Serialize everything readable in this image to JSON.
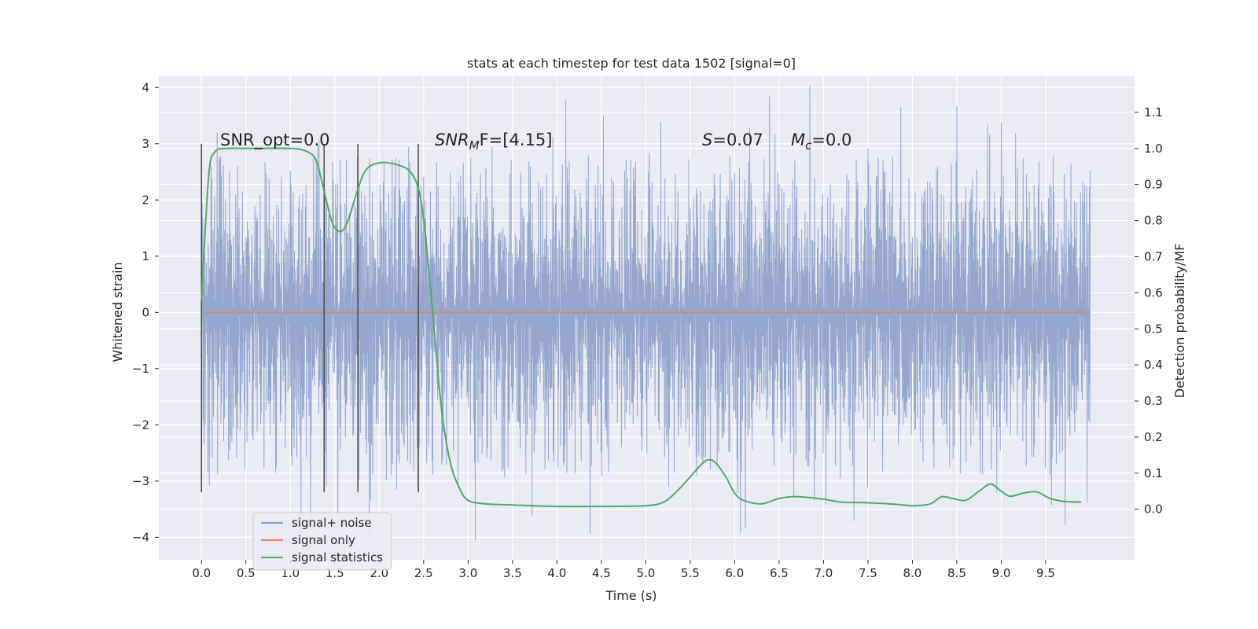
{
  "chart_data": {
    "type": "line",
    "title": "stats at each timestep for test data 1502 [signal=0]",
    "xlabel": "Time (s)",
    "ylabel": "Whitened strain",
    "y2label": "Detection probability/MF",
    "xlim": [
      -0.48,
      10.5
    ],
    "ylim": [
      -4.4,
      4.2
    ],
    "y2lim": [
      -0.14,
      1.2
    ],
    "xticks": [
      0.0,
      0.5,
      1.0,
      1.5,
      2.0,
      2.5,
      3.0,
      3.5,
      4.0,
      4.5,
      5.0,
      5.5,
      6.0,
      6.5,
      7.0,
      7.5,
      8.0,
      8.5,
      9.0,
      9.5
    ],
    "xtick_labels": [
      "0.0",
      "0.5",
      "1.0",
      "1.5",
      "2.0",
      "2.5",
      "3.0",
      "3.5",
      "4.0",
      "4.5",
      "5.0",
      "5.5",
      "6.0",
      "6.5",
      "7.0",
      "7.5",
      "8.0",
      "8.5",
      "9.0",
      "9.5"
    ],
    "yticks": [
      -4,
      -3,
      -2,
      -1,
      0,
      1,
      2,
      3,
      4
    ],
    "ytick_labels": [
      "−4",
      "−3",
      "−2",
      "−1",
      "0",
      "1",
      "2",
      "3",
      "4"
    ],
    "y2ticks": [
      0.0,
      0.1,
      0.2,
      0.3,
      0.4,
      0.5,
      0.6,
      0.7,
      0.8,
      0.9,
      1.0,
      1.1
    ],
    "y2tick_labels": [
      "0.0",
      "0.1",
      "0.2",
      "0.3",
      "0.4",
      "0.5",
      "0.6",
      "0.7",
      "0.8",
      "0.9",
      "1.0",
      "1.1"
    ],
    "grid": true,
    "legend_position": "lower-left",
    "colors": {
      "noise": "#8c9fcb",
      "signal": "#dd8452",
      "stats": "#55a868",
      "background": "#eaeaf2",
      "vline": "#4d4d4d"
    },
    "annotations": {
      "snr_opt": "SNR_opt=0.0",
      "snr_mf_main": "SNR",
      "snr_mf_sub": "M",
      "snr_mf_rest": "F=[4.15]",
      "s_main": "S",
      "s_rest": "=0.07",
      "mc_main": "M",
      "mc_sub": "c",
      "mc_rest": "=0.0"
    },
    "vertical_lines": {
      "x": [
        0.0,
        1.38,
        1.76,
        2.44
      ],
      "y_range": [
        -3.2,
        3.0
      ]
    },
    "series": [
      {
        "name": "signal+ noise",
        "kind": "noise",
        "x_range": [
          0.0,
          10.0
        ],
        "core_band": [
          -1.35,
          1.35
        ],
        "typical_peak": [
          -2.9,
          2.8
        ],
        "extremes": [
          -4.05,
          3.85
        ]
      },
      {
        "name": "signal only",
        "x": [
          0.0,
          10.0
        ],
        "y": [
          0.0,
          0.0
        ]
      },
      {
        "name": "signal statistics",
        "axis": "right",
        "x": [
          0.0,
          0.08,
          0.15,
          0.3,
          0.5,
          1.0,
          1.2,
          1.3,
          1.4,
          1.48,
          1.57,
          1.65,
          1.75,
          1.85,
          2.0,
          2.2,
          2.35,
          2.45,
          2.52,
          2.6,
          2.7,
          2.8,
          2.9,
          3.0,
          3.2,
          3.5,
          4.0,
          4.5,
          5.0,
          5.2,
          5.35,
          5.5,
          5.65,
          5.73,
          5.8,
          5.9,
          6.0,
          6.1,
          6.3,
          6.5,
          6.7,
          7.0,
          7.2,
          7.5,
          7.8,
          8.0,
          8.2,
          8.33,
          8.45,
          8.6,
          8.75,
          8.88,
          9.0,
          9.1,
          9.25,
          9.4,
          9.55,
          9.7,
          9.9
        ],
        "y": [
          0.58,
          0.92,
          0.99,
          1.0,
          1.0,
          1.0,
          0.99,
          0.96,
          0.86,
          0.79,
          0.77,
          0.8,
          0.88,
          0.94,
          0.96,
          0.955,
          0.935,
          0.88,
          0.76,
          0.55,
          0.28,
          0.13,
          0.06,
          0.025,
          0.015,
          0.012,
          0.008,
          0.008,
          0.01,
          0.02,
          0.05,
          0.09,
          0.13,
          0.137,
          0.125,
          0.09,
          0.045,
          0.025,
          0.015,
          0.03,
          0.035,
          0.028,
          0.02,
          0.018,
          0.014,
          0.01,
          0.015,
          0.035,
          0.03,
          0.025,
          0.05,
          0.07,
          0.05,
          0.036,
          0.045,
          0.048,
          0.03,
          0.022,
          0.02
        ]
      }
    ]
  }
}
